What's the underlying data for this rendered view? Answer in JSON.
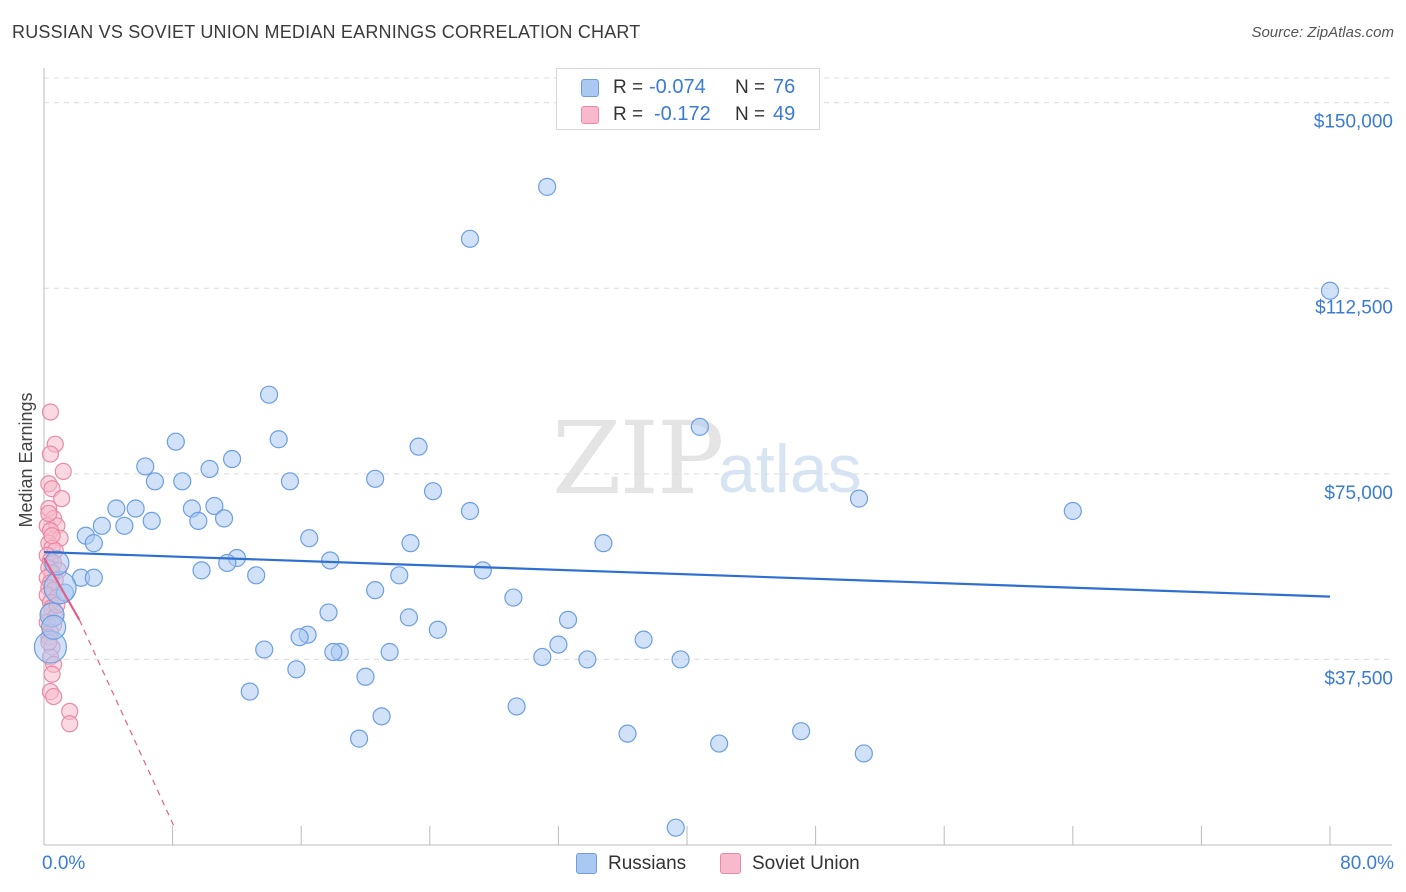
{
  "header": {
    "title": "RUSSIAN VS SOVIET UNION MEDIAN EARNINGS CORRELATION CHART",
    "source": "Source: ZipAtlas.com"
  },
  "watermark": {
    "zip": "ZIP",
    "atlas": "atlas"
  },
  "legend": {
    "rows": [
      {
        "r_label": "R =",
        "r_value": "-0.074",
        "n_label": "N =",
        "n_value": "76",
        "color": "#a9c8f2",
        "border": "#6d9fe0"
      },
      {
        "r_label": "R =",
        "r_value": "-0.172",
        "n_label": "N =",
        "n_value": "49",
        "color": "#f7b9cb",
        "border": "#e88aa7"
      }
    ]
  },
  "bottom_legend": [
    {
      "label": "Russians",
      "color": "#a9c8f2",
      "border": "#6d9fe0"
    },
    {
      "label": "Soviet Union",
      "color": "#f7b9cb",
      "border": "#e88aa7"
    }
  ],
  "chart_data": {
    "type": "scatter",
    "title": "RUSSIAN VS SOVIET UNION MEDIAN EARNINGS CORRELATION CHART",
    "xlabel": "",
    "ylabel": "Median Earnings",
    "xlim": [
      0,
      80
    ],
    "ylim": [
      0,
      155000
    ],
    "x_tick_labels": [
      "0.0%",
      "80.0%"
    ],
    "y_ticks": [
      {
        "value": 37500,
        "label": "$37,500"
      },
      {
        "value": 75000,
        "label": "$75,000"
      },
      {
        "value": 112500,
        "label": "$112,500"
      },
      {
        "value": 150000,
        "label": "$150,000"
      }
    ],
    "series": [
      {
        "name": "Russians",
        "color": "#a9c8f2",
        "stroke": "#6d9fe0",
        "trend": {
          "x": [
            0,
            80
          ],
          "y": [
            59200,
            50200
          ],
          "color": "#2f6fd0"
        },
        "points": [
          [
            31.3,
            133000
          ],
          [
            26.5,
            122500
          ],
          [
            80.0,
            112000
          ],
          [
            14.0,
            91000
          ],
          [
            40.8,
            84500
          ],
          [
            14.6,
            82000
          ],
          [
            8.2,
            81500
          ],
          [
            23.3,
            80500
          ],
          [
            11.7,
            78000
          ],
          [
            6.3,
            76500
          ],
          [
            10.3,
            76000
          ],
          [
            6.9,
            73500
          ],
          [
            8.6,
            73500
          ],
          [
            15.3,
            73500
          ],
          [
            20.6,
            74000
          ],
          [
            24.2,
            71500
          ],
          [
            50.7,
            70000
          ],
          [
            64.0,
            67500
          ],
          [
            4.5,
            68000
          ],
          [
            5.7,
            68000
          ],
          [
            9.2,
            68000
          ],
          [
            10.6,
            68500
          ],
          [
            26.5,
            67500
          ],
          [
            6.7,
            65500
          ],
          [
            9.6,
            65500
          ],
          [
            11.2,
            66000
          ],
          [
            3.6,
            64500
          ],
          [
            5.0,
            64500
          ],
          [
            2.6,
            62500
          ],
          [
            16.5,
            62000
          ],
          [
            22.8,
            61000
          ],
          [
            34.8,
            61000
          ],
          [
            3.1,
            61000
          ],
          [
            12.0,
            58000
          ],
          [
            17.8,
            57500
          ],
          [
            11.4,
            57000
          ],
          [
            9.8,
            55500
          ],
          [
            27.3,
            55500
          ],
          [
            13.2,
            54500
          ],
          [
            22.1,
            54500
          ],
          [
            2.3,
            54000
          ],
          [
            3.1,
            54000
          ],
          [
            1.3,
            51000
          ],
          [
            20.6,
            51500
          ],
          [
            29.2,
            50000
          ],
          [
            17.7,
            47000
          ],
          [
            22.7,
            46000
          ],
          [
            32.6,
            45500
          ],
          [
            24.5,
            43500
          ],
          [
            16.4,
            42500
          ],
          [
            15.9,
            42000
          ],
          [
            37.3,
            41500
          ],
          [
            32.0,
            40500
          ],
          [
            18.4,
            39000
          ],
          [
            13.7,
            39500
          ],
          [
            18.0,
            39000
          ],
          [
            21.5,
            39000
          ],
          [
            31.0,
            38000
          ],
          [
            33.8,
            37500
          ],
          [
            39.6,
            37500
          ],
          [
            15.7,
            35500
          ],
          [
            20.0,
            34000
          ],
          [
            12.8,
            31000
          ],
          [
            29.4,
            28000
          ],
          [
            21.0,
            26000
          ],
          [
            47.1,
            23000
          ],
          [
            36.3,
            22500
          ],
          [
            19.6,
            21500
          ],
          [
            42.0,
            20500
          ],
          [
            51.0,
            18500
          ],
          [
            39.3,
            3500
          ],
          [
            0.5,
            46500
          ],
          [
            0.4,
            40000
          ],
          [
            0.6,
            44000
          ],
          [
            1.0,
            52000
          ],
          [
            0.8,
            57000
          ]
        ],
        "sizes_note": "most markers radius 8; a few near x=0 are larger"
      },
      {
        "name": "Soviet Union",
        "color": "#f7b9cb",
        "stroke": "#e88aa7",
        "trend": {
          "x": [
            0,
            2.2
          ],
          "y": [
            58000,
            45500
          ],
          "color": "#e0608a"
        },
        "trend_extension": {
          "x": [
            2.2,
            8.2
          ],
          "y": [
            45500,
            3000
          ]
        },
        "points": [
          [
            0.4,
            87500
          ],
          [
            0.7,
            81000
          ],
          [
            0.4,
            79000
          ],
          [
            1.2,
            75500
          ],
          [
            0.3,
            73000
          ],
          [
            0.5,
            72000
          ],
          [
            1.1,
            70000
          ],
          [
            0.3,
            68000
          ],
          [
            0.6,
            66000
          ],
          [
            0.2,
            64500
          ],
          [
            0.8,
            64500
          ],
          [
            0.4,
            63500
          ],
          [
            1.0,
            62000
          ],
          [
            0.3,
            61000
          ],
          [
            0.5,
            60000
          ],
          [
            0.7,
            59500
          ],
          [
            0.2,
            58500
          ],
          [
            0.4,
            57500
          ],
          [
            0.6,
            57000
          ],
          [
            0.3,
            56000
          ],
          [
            0.9,
            55500
          ],
          [
            0.5,
            55000
          ],
          [
            0.2,
            54000
          ],
          [
            0.7,
            53500
          ],
          [
            0.4,
            53000
          ],
          [
            0.3,
            52000
          ],
          [
            0.6,
            51500
          ],
          [
            0.2,
            50500
          ],
          [
            0.8,
            50000
          ],
          [
            0.4,
            49000
          ],
          [
            0.5,
            48000
          ],
          [
            0.3,
            47000
          ],
          [
            0.7,
            46000
          ],
          [
            0.2,
            45000
          ],
          [
            0.6,
            44500
          ],
          [
            0.4,
            43000
          ],
          [
            0.3,
            42000
          ],
          [
            0.5,
            40000
          ],
          [
            0.4,
            38000
          ],
          [
            0.6,
            36500
          ],
          [
            0.5,
            34500
          ],
          [
            0.4,
            31000
          ],
          [
            0.6,
            30000
          ],
          [
            1.6,
            27000
          ],
          [
            1.6,
            24500
          ],
          [
            0.3,
            41000
          ],
          [
            0.8,
            48500
          ],
          [
            0.5,
            62500
          ],
          [
            0.3,
            67000
          ]
        ]
      }
    ]
  }
}
